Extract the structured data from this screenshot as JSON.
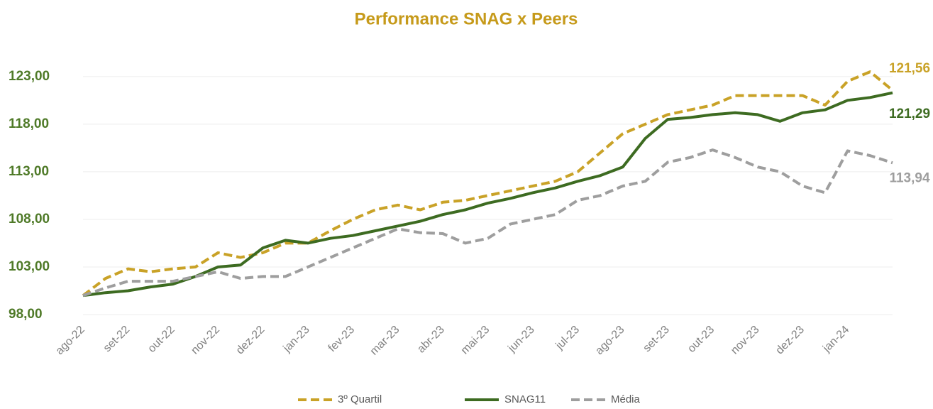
{
  "chart_data": {
    "type": "line",
    "title": "Performance SNAG x Peers",
    "categories": [
      "ago-22",
      null,
      "set-22",
      null,
      "out-22",
      null,
      "nov-22",
      null,
      "dez-22",
      null,
      "jan-23",
      null,
      "fev-23",
      null,
      "mar-23",
      null,
      "abr-23",
      null,
      "mai-23",
      null,
      "jun-23",
      null,
      "jul-23",
      null,
      "ago-23",
      null,
      "set-23",
      null,
      "out-23",
      null,
      "nov-23",
      null,
      "dez-23",
      null,
      "jan-24",
      null,
      null
    ],
    "series": [
      {
        "name": "3º Quartil",
        "color": "#c9a227",
        "dash": true,
        "values": [
          100.0,
          101.8,
          102.8,
          102.5,
          102.8,
          103.0,
          104.5,
          104.0,
          104.5,
          105.5,
          105.5,
          106.8,
          108.0,
          109.0,
          109.5,
          109.0,
          109.8,
          110.0,
          110.5,
          111.0,
          111.5,
          112.0,
          113.0,
          115.0,
          117.0,
          118.0,
          119.0,
          119.5,
          120.0,
          121.0,
          121.0,
          121.0,
          121.0,
          120.0,
          122.5,
          123.5,
          121.56
        ],
        "value_labels": [
          null,
          null,
          null,
          null,
          null,
          null,
          null,
          null,
          null,
          null,
          null,
          null,
          null,
          null,
          null,
          null,
          null,
          null,
          null,
          null,
          null,
          null,
          null,
          null,
          null,
          null,
          null,
          null,
          null,
          null,
          null,
          null,
          null,
          null,
          null,
          null,
          "121,56"
        ]
      },
      {
        "name": "SNAG11",
        "color": "#3d6b21",
        "dash": false,
        "values": [
          100.0,
          100.3,
          100.5,
          100.9,
          101.2,
          102.0,
          103.0,
          103.2,
          105.0,
          105.8,
          105.5,
          106.0,
          106.3,
          106.8,
          107.3,
          107.8,
          108.5,
          109.0,
          109.7,
          110.2,
          110.8,
          111.3,
          112.0,
          112.6,
          113.5,
          116.5,
          118.5,
          118.7,
          119.0,
          119.2,
          119.0,
          118.3,
          119.2,
          119.5,
          120.5,
          120.8,
          121.29
        ],
        "value_labels": [
          null,
          null,
          null,
          null,
          null,
          null,
          null,
          null,
          null,
          null,
          null,
          null,
          null,
          null,
          null,
          null,
          null,
          null,
          null,
          null,
          null,
          null,
          null,
          null,
          null,
          null,
          null,
          null,
          null,
          null,
          null,
          null,
          null,
          null,
          null,
          null,
          "121,29"
        ]
      },
      {
        "name": "Média",
        "color": "#9e9e9e",
        "dash": true,
        "values": [
          100.0,
          100.8,
          101.5,
          101.5,
          101.5,
          102.0,
          102.5,
          101.8,
          102.0,
          102.0,
          103.0,
          104.0,
          105.0,
          106.0,
          107.0,
          106.6,
          106.5,
          105.5,
          106.0,
          107.5,
          108.0,
          108.5,
          110.0,
          110.5,
          111.5,
          112.0,
          114.0,
          114.5,
          115.3,
          114.5,
          113.5,
          113.0,
          111.5,
          110.8,
          115.2,
          114.7,
          113.94
        ],
        "value_labels": [
          null,
          null,
          null,
          null,
          null,
          null,
          null,
          null,
          null,
          null,
          null,
          null,
          null,
          null,
          null,
          null,
          null,
          null,
          null,
          null,
          null,
          null,
          null,
          null,
          null,
          null,
          null,
          null,
          null,
          null,
          null,
          null,
          null,
          null,
          null,
          null,
          "113,94"
        ]
      }
    ],
    "ylim": [
      98,
      125
    ],
    "yticks": [
      {
        "value": 98,
        "label": "98,00"
      },
      {
        "value": 103,
        "label": "103,00"
      },
      {
        "value": 108,
        "label": "108,00"
      },
      {
        "value": 113,
        "label": "113,00"
      },
      {
        "value": 118,
        "label": "118,00"
      },
      {
        "value": 123,
        "label": "123,00"
      }
    ],
    "grid": true,
    "legend": "bottom"
  }
}
